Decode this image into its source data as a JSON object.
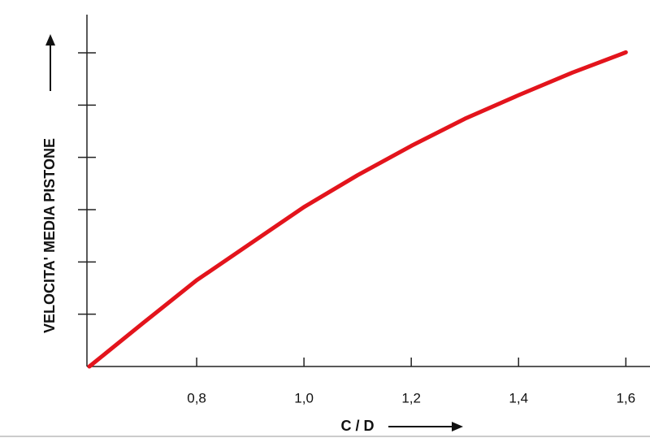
{
  "chart_data": {
    "type": "line",
    "x_label": "C / D",
    "y_label": "VELOCITA' MEDIA PISTONE",
    "x": [
      0.6,
      0.7,
      0.8,
      0.9,
      1.0,
      1.1,
      1.2,
      1.3,
      1.4,
      1.5,
      1.6
    ],
    "series": [
      {
        "color": "#e3141c",
        "values": [
          0,
          0.83,
          1.65,
          2.35,
          3.05,
          3.66,
          4.22,
          4.74,
          5.19,
          5.62,
          6.01
        ]
      }
    ],
    "xlim": [
      0.6,
      1.645
    ],
    "ylim": [
      0,
      6.7
    ],
    "xticks": [
      {
        "value": 0.8,
        "label": "0,8"
      },
      {
        "value": 1.0,
        "label": "1,0"
      },
      {
        "value": 1.2,
        "label": "1,2"
      },
      {
        "value": 1.4,
        "label": "1,4"
      },
      {
        "value": 1.6,
        "label": "1,6"
      }
    ],
    "yticks": [
      1,
      2,
      3,
      4,
      5,
      6
    ]
  }
}
